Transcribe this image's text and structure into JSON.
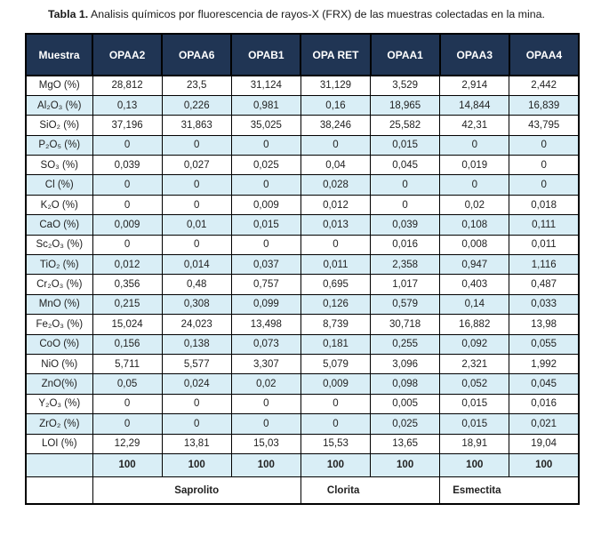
{
  "title": {
    "prefix": "Tabla 1.",
    "rest": " Analisis químicos por fluorescencia de rayos-X (FRX) de las muestras colectadas en la mina."
  },
  "colors": {
    "header_bg": "#203554",
    "header_text": "#ffffff",
    "stripe_bg": "#d9eef6",
    "border": "#000000"
  },
  "table": {
    "columns": [
      "Muestra",
      "OPAA2",
      "OPAA6",
      "OPAB1",
      "OPA RET",
      "OPAA1",
      "OPAA3",
      "OPAA4"
    ],
    "rows": [
      {
        "label": "MgO (%)",
        "values": [
          "28,812",
          "23,5",
          "31,124",
          "31,129",
          "3,529",
          "2,914",
          "2,442"
        ]
      },
      {
        "label": "Al₂O₃ (%)",
        "values": [
          "0,13",
          "0,226",
          "0,981",
          "0,16",
          "18,965",
          "14,844",
          "16,839"
        ]
      },
      {
        "label": "SiO₂ (%)",
        "values": [
          "37,196",
          "31,863",
          "35,025",
          "38,246",
          "25,582",
          "42,31",
          "43,795"
        ]
      },
      {
        "label": "P₂O₅ (%)",
        "values": [
          "0",
          "0",
          "0",
          "0",
          "0,015",
          "0",
          "0"
        ]
      },
      {
        "label": "SO₃ (%)",
        "values": [
          "0,039",
          "0,027",
          "0,025",
          "0,04",
          "0,045",
          "0,019",
          "0"
        ]
      },
      {
        "label": "Cl (%)",
        "values": [
          "0",
          "0",
          "0",
          "0,028",
          "0",
          "0",
          "0"
        ]
      },
      {
        "label": "K₂O (%)",
        "values": [
          "0",
          "0",
          "0,009",
          "0,012",
          "0",
          "0,02",
          "0,018"
        ]
      },
      {
        "label": "CaO (%)",
        "values": [
          "0,009",
          "0,01",
          "0,015",
          "0,013",
          "0,039",
          "0,108",
          "0,111"
        ]
      },
      {
        "label": "Sc₂O₃ (%)",
        "values": [
          "0",
          "0",
          "0",
          "0",
          "0,016",
          "0,008",
          "0,011"
        ]
      },
      {
        "label": "TiO₂ (%)",
        "values": [
          "0,012",
          "0,014",
          "0,037",
          "0,011",
          "2,358",
          "0,947",
          "1,116"
        ]
      },
      {
        "label": "Cr₂O₃ (%)",
        "values": [
          "0,356",
          "0,48",
          "0,757",
          "0,695",
          "1,017",
          "0,403",
          "0,487"
        ]
      },
      {
        "label": "MnO (%)",
        "values": [
          "0,215",
          "0,308",
          "0,099",
          "0,126",
          "0,579",
          "0,14",
          "0,033"
        ]
      },
      {
        "label": "Fe₂O₃ (%)",
        "values": [
          "15,024",
          "24,023",
          "13,498",
          "8,739",
          "30,718",
          "16,882",
          "13,98"
        ]
      },
      {
        "label": "CoO (%)",
        "values": [
          "0,156",
          "0,138",
          "0,073",
          "0,181",
          "0,255",
          "0,092",
          "0,055"
        ]
      },
      {
        "label": "NiO (%)",
        "values": [
          "5,711",
          "5,577",
          "3,307",
          "5,079",
          "3,096",
          "2,321",
          "1,992"
        ]
      },
      {
        "label": "ZnO(%)",
        "values": [
          "0,05",
          "0,024",
          "0,02",
          "0,009",
          "0,098",
          "0,052",
          "0,045"
        ]
      },
      {
        "label": "Y₂O₃ (%)",
        "values": [
          "0",
          "0",
          "0",
          "0",
          "0,005",
          "0,015",
          "0,016"
        ]
      },
      {
        "label": "ZrO₂ (%)",
        "values": [
          "0",
          "0",
          "0",
          "0",
          "0,025",
          "0,015",
          "0,021"
        ]
      },
      {
        "label": "LOI (%)",
        "values": [
          "12,29",
          "13,81",
          "15,03",
          "15,53",
          "13,65",
          "18,91",
          "19,04"
        ]
      }
    ],
    "total_row": {
      "label": "",
      "values": [
        "100",
        "100",
        "100",
        "100",
        "100",
        "100",
        "100"
      ]
    },
    "group_row": [
      {
        "id": "saprolito",
        "label": "Saprolito",
        "span": 3
      },
      {
        "id": "clorita",
        "label": "Clorita",
        "span": 2
      },
      {
        "id": "esmectita",
        "label": "Esmectita",
        "span": 2
      }
    ]
  }
}
